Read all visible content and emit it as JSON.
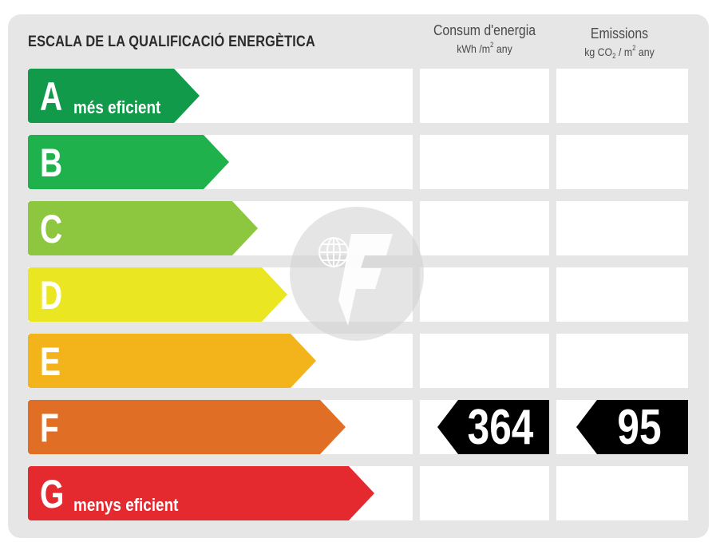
{
  "title": "ESCALA DE LA QUALIFICACIÓ ENERGÈTICA",
  "columns": {
    "energy": {
      "label": "Consum d'energia",
      "unit_a": "kWh /m",
      "unit_sup": "2",
      "unit_b": " any"
    },
    "emissions": {
      "label": "Emissions",
      "unit_a": "kg CO",
      "unit_sub": "2",
      "unit_mid": " / m",
      "unit_sup": "2",
      "unit_b": " any"
    }
  },
  "ratings": [
    {
      "letter": "A",
      "tag": "més eficient",
      "color": "#119a4a"
    },
    {
      "letter": "B",
      "tag": "",
      "color": "#1fb14b"
    },
    {
      "letter": "C",
      "tag": "",
      "color": "#8dc63f"
    },
    {
      "letter": "D",
      "tag": "",
      "color": "#eae621"
    },
    {
      "letter": "E",
      "tag": "",
      "color": "#f3b31b"
    },
    {
      "letter": "F",
      "tag": "",
      "color": "#e06f25"
    },
    {
      "letter": "G",
      "tag": "menys eficient",
      "color": "#e42a2f"
    }
  ],
  "result": {
    "rating": "F",
    "energy_value": "364",
    "emissions_value": "95"
  }
}
